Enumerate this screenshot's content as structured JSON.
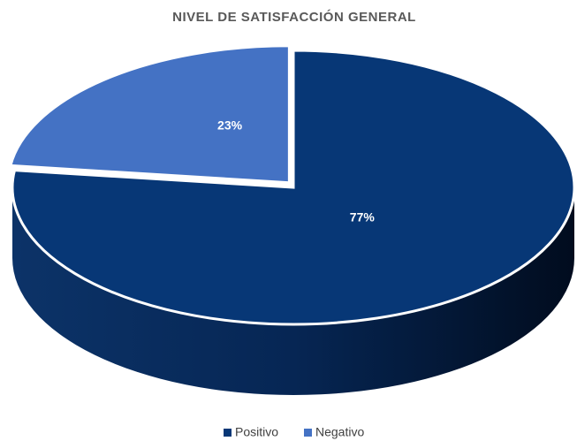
{
  "chart_data": {
    "type": "pie",
    "title": "NIVEL DE SATISFACCIÓN GENERAL",
    "categories": [
      "Positivo",
      "Negativo"
    ],
    "values": [
      77,
      23
    ],
    "value_labels": [
      "77%",
      "23%"
    ],
    "colors": [
      "#073776",
      "#4472c4"
    ],
    "legend": "bottom"
  }
}
